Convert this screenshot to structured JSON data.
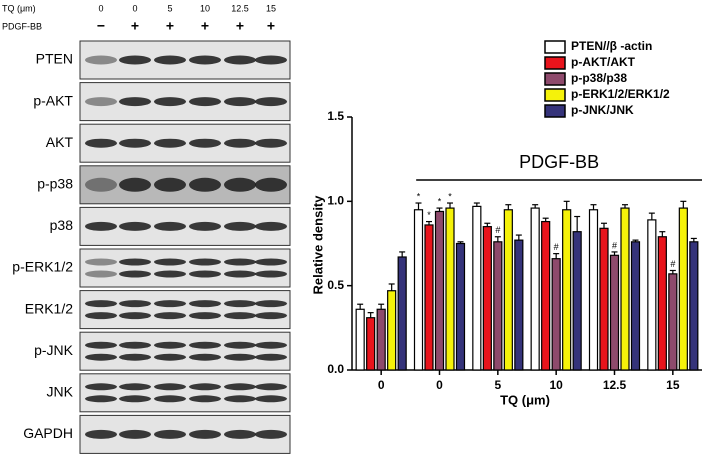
{
  "blot": {
    "treatment_label": "TQ (μm)",
    "doses": [
      "0",
      "0",
      "5",
      "10",
      "12.5",
      "15"
    ],
    "stimulus_label": "PDGF-BB",
    "stimulus": [
      "−",
      "+",
      "+",
      "+",
      "+",
      "+"
    ],
    "rows": [
      "PTEN",
      "p-AKT",
      "AKT",
      "p-p38",
      "p38",
      "p-ERK1/2",
      "ERK1/2",
      "p-JNK",
      "JNK",
      "GAPDH"
    ]
  },
  "chart_data": {
    "type": "bar",
    "xlabel": "TQ (μm)",
    "ylabel": "Relative density",
    "bracket_label": "PDGF-BB",
    "categories": [
      "0",
      "0",
      "5",
      "10",
      "12.5",
      "15"
    ],
    "ylim": [
      0,
      1.5
    ],
    "yticks": [
      {
        "value": 0,
        "label": "0.0"
      },
      0.5,
      {
        "value": 1,
        "label": "1.0"
      },
      1.5
    ],
    "series": [
      {
        "name": "PTEN//β -actin",
        "color": "#ffffff",
        "values": [
          0.36,
          0.95,
          0.97,
          0.96,
          0.95,
          0.89
        ],
        "errors": [
          0.03,
          0.04,
          0.02,
          0.02,
          0.03,
          0.04
        ],
        "annotations": [
          null,
          "*",
          null,
          null,
          null,
          null
        ]
      },
      {
        "name": "p-AKT/AKT",
        "color": "#e8141c",
        "values": [
          0.31,
          0.86,
          0.85,
          0.88,
          0.84,
          0.79
        ],
        "errors": [
          0.03,
          0.02,
          0.02,
          0.02,
          0.03,
          0.03
        ],
        "annotations": [
          null,
          "*",
          null,
          null,
          null,
          null
        ]
      },
      {
        "name": "p-p38/p38",
        "color": "#8e4a6c",
        "values": [
          0.36,
          0.94,
          0.76,
          0.66,
          0.68,
          0.57
        ],
        "errors": [
          0.03,
          0.02,
          0.03,
          0.03,
          0.02,
          0.02
        ],
        "annotations": [
          null,
          "*",
          "#",
          "#",
          "#",
          "#"
        ]
      },
      {
        "name": "p-ERK1/2/ERK1/2",
        "color": "#f5f20a",
        "values": [
          0.47,
          0.96,
          0.95,
          0.95,
          0.96,
          0.96
        ],
        "errors": [
          0.04,
          0.03,
          0.03,
          0.05,
          0.02,
          0.04
        ],
        "annotations": [
          null,
          "*",
          null,
          null,
          null,
          null
        ]
      },
      {
        "name": "p-JNK/JNK",
        "color": "#35337a",
        "values": [
          0.67,
          0.75,
          0.77,
          0.82,
          0.76,
          0.76
        ],
        "errors": [
          0.03,
          0.01,
          0.03,
          0.09,
          0.01,
          0.02
        ],
        "annotations": [
          null,
          null,
          null,
          null,
          null,
          null
        ]
      }
    ]
  }
}
